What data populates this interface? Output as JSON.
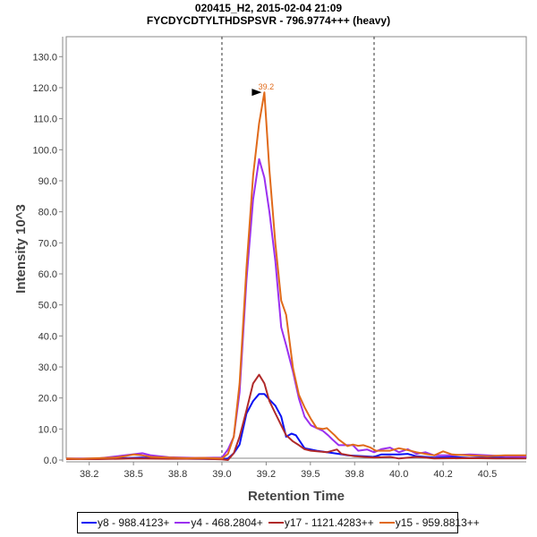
{
  "chart_data": {
    "type": "line",
    "title": "020415_H2, 2015-02-04 21:09",
    "subtitle": "FYCDYCDTYLTHDSPSVR - 796.9774+++ (heavy)",
    "xlabel": "Retention Time",
    "ylabel": "Intensity 10^3",
    "xlim": [
      38.12,
      40.72
    ],
    "ylim": [
      0,
      130
    ],
    "xticks": [
      38.25,
      38.5,
      38.75,
      39.0,
      39.25,
      39.5,
      39.75,
      40.0,
      40.25,
      40.5
    ],
    "xtick_labels": [
      "38.2",
      "38.5",
      "38.8",
      "39.0",
      "39.2",
      "39.5",
      "39.8",
      "40.0",
      "40.2",
      "40.5"
    ],
    "yticks": [
      0,
      10,
      20,
      30,
      40,
      50,
      60,
      70,
      80,
      90,
      100,
      110,
      120,
      130
    ],
    "ytick_labels": [
      "0.0",
      "10.0",
      "20.0",
      "30.0",
      "40.0",
      "50.0",
      "60.0",
      "70.0",
      "80.0",
      "90.0",
      "100.0",
      "110.0",
      "120.0",
      "130.0"
    ],
    "integration_boundaries": [
      39.0,
      39.86
    ],
    "peak_annotation": {
      "x": 39.24,
      "y": 118.5,
      "label": "39.2",
      "color": "#e06a1a"
    },
    "legend_position": "bottom",
    "series": [
      {
        "name": "y8 - 988.4123+",
        "color": "#0a12f5",
        "points": [
          [
            38.12,
            0.3
          ],
          [
            38.3,
            0.4
          ],
          [
            38.45,
            0.6
          ],
          [
            38.55,
            0.8
          ],
          [
            38.7,
            0.5
          ],
          [
            38.85,
            0.4
          ],
          [
            39.0,
            0.3
          ],
          [
            39.034,
            0.5
          ],
          [
            39.067,
            2.2
          ],
          [
            39.1,
            5
          ],
          [
            39.139,
            15
          ],
          [
            39.176,
            19
          ],
          [
            39.21,
            21.3
          ],
          [
            39.24,
            21.3
          ],
          [
            39.268,
            19.5
          ],
          [
            39.302,
            17.5
          ],
          [
            39.335,
            14
          ],
          [
            39.363,
            7.5
          ],
          [
            39.393,
            8.5
          ],
          [
            39.418,
            8
          ],
          [
            39.467,
            3.8
          ],
          [
            39.503,
            3.4
          ],
          [
            39.536,
            3
          ],
          [
            39.593,
            2.5
          ],
          [
            39.66,
            2
          ],
          [
            39.71,
            1.5
          ],
          [
            39.8,
            1.2
          ],
          [
            39.86,
            1
          ],
          [
            39.9,
            1.8
          ],
          [
            40.0,
            1.8
          ],
          [
            40.05,
            2
          ],
          [
            40.1,
            1.2
          ],
          [
            40.2,
            0.8
          ],
          [
            40.3,
            1
          ],
          [
            40.4,
            0.7
          ],
          [
            40.5,
            0.9
          ],
          [
            40.6,
            0.7
          ],
          [
            40.72,
            0.6
          ]
        ]
      },
      {
        "name": "y4 - 468.2804+",
        "color": "#9b30f0",
        "points": [
          [
            38.12,
            0.5
          ],
          [
            38.3,
            0.5
          ],
          [
            38.45,
            1.5
          ],
          [
            38.55,
            2.2
          ],
          [
            38.6,
            1.5
          ],
          [
            38.7,
            0.9
          ],
          [
            38.85,
            0.7
          ],
          [
            39.0,
            0.8
          ],
          [
            39.034,
            3.4
          ],
          [
            39.067,
            7.5
          ],
          [
            39.1,
            21.8
          ],
          [
            39.139,
            58
          ],
          [
            39.176,
            84
          ],
          [
            39.21,
            97
          ],
          [
            39.24,
            91
          ],
          [
            39.268,
            80
          ],
          [
            39.302,
            64
          ],
          [
            39.335,
            42.8
          ],
          [
            39.363,
            37
          ],
          [
            39.402,
            28.4
          ],
          [
            39.435,
            19.8
          ],
          [
            39.467,
            14
          ],
          [
            39.503,
            11.2
          ],
          [
            39.536,
            10.3
          ],
          [
            39.57,
            9.4
          ],
          [
            39.6,
            8
          ],
          [
            39.625,
            6.6
          ],
          [
            39.66,
            4.8
          ],
          [
            39.71,
            4.8
          ],
          [
            39.74,
            4.8
          ],
          [
            39.77,
            3
          ],
          [
            39.82,
            3.4
          ],
          [
            39.86,
            2.5
          ],
          [
            39.9,
            3.5
          ],
          [
            39.95,
            4
          ],
          [
            40.0,
            2.5
          ],
          [
            40.05,
            3.5
          ],
          [
            40.1,
            2
          ],
          [
            40.15,
            2.5
          ],
          [
            40.2,
            1.5
          ],
          [
            40.3,
            1.5
          ],
          [
            40.4,
            1.8
          ],
          [
            40.5,
            1.5
          ],
          [
            40.6,
            1.2
          ],
          [
            40.72,
            1.0
          ]
        ]
      },
      {
        "name": "y17 - 1121.4283++",
        "color": "#b02a2a",
        "points": [
          [
            38.12,
            0.3
          ],
          [
            38.3,
            0.3
          ],
          [
            38.5,
            0.5
          ],
          [
            38.7,
            0.4
          ],
          [
            38.9,
            0.4
          ],
          [
            39.0,
            0.2
          ],
          [
            39.034,
            0
          ],
          [
            39.067,
            2.2
          ],
          [
            39.1,
            7.5
          ],
          [
            39.139,
            16
          ],
          [
            39.176,
            24.7
          ],
          [
            39.21,
            27.5
          ],
          [
            39.24,
            24.7
          ],
          [
            39.268,
            19
          ],
          [
            39.302,
            15
          ],
          [
            39.335,
            11.2
          ],
          [
            39.363,
            8
          ],
          [
            39.402,
            6
          ],
          [
            39.435,
            4.8
          ],
          [
            39.467,
            3.5
          ],
          [
            39.503,
            3
          ],
          [
            39.593,
            2.5
          ],
          [
            39.65,
            3.4
          ],
          [
            39.675,
            2
          ],
          [
            39.75,
            1.2
          ],
          [
            39.86,
            0.8
          ],
          [
            39.95,
            1
          ],
          [
            40.0,
            0.5
          ],
          [
            40.1,
            1
          ],
          [
            40.2,
            0.5
          ],
          [
            40.4,
            0.6
          ],
          [
            40.55,
            0.5
          ],
          [
            40.72,
            0.5
          ]
        ]
      },
      {
        "name": "y15 - 959.8813++",
        "color": "#e06a1a",
        "points": [
          [
            38.12,
            0.5
          ],
          [
            38.2,
            0.4
          ],
          [
            38.3,
            0.6
          ],
          [
            38.4,
            0.8
          ],
          [
            38.45,
            1.2
          ],
          [
            38.5,
            1.8
          ],
          [
            38.55,
            1.5
          ],
          [
            38.6,
            1.0
          ],
          [
            38.7,
            0.8
          ],
          [
            38.8,
            0.6
          ],
          [
            38.9,
            0.7
          ],
          [
            39.0,
            0.5
          ],
          [
            39.034,
            2
          ],
          [
            39.067,
            7.5
          ],
          [
            39.1,
            24.7
          ],
          [
            39.139,
            62
          ],
          [
            39.176,
            91.6
          ],
          [
            39.21,
            108.5
          ],
          [
            39.24,
            118.5
          ],
          [
            39.268,
            93.5
          ],
          [
            39.302,
            69.7
          ],
          [
            39.335,
            51.4
          ],
          [
            39.363,
            46.8
          ],
          [
            39.402,
            29.6
          ],
          [
            39.435,
            21
          ],
          [
            39.467,
            17
          ],
          [
            39.503,
            13.2
          ],
          [
            39.536,
            10.3
          ],
          [
            39.57,
            10
          ],
          [
            39.593,
            10.3
          ],
          [
            39.637,
            8
          ],
          [
            39.66,
            6.6
          ],
          [
            39.71,
            4.5
          ],
          [
            39.74,
            5
          ],
          [
            39.77,
            4.6
          ],
          [
            39.8,
            4.8
          ],
          [
            39.84,
            4
          ],
          [
            39.87,
            3
          ],
          [
            39.95,
            3
          ],
          [
            40.0,
            3.8
          ],
          [
            40.05,
            3.2
          ],
          [
            40.1,
            2.5
          ],
          [
            40.15,
            2
          ],
          [
            40.2,
            1.5
          ],
          [
            40.25,
            2.8
          ],
          [
            40.3,
            1.8
          ],
          [
            40.4,
            1.5
          ],
          [
            40.5,
            1.2
          ],
          [
            40.6,
            1.5
          ],
          [
            40.72,
            1.5
          ]
        ]
      }
    ]
  }
}
